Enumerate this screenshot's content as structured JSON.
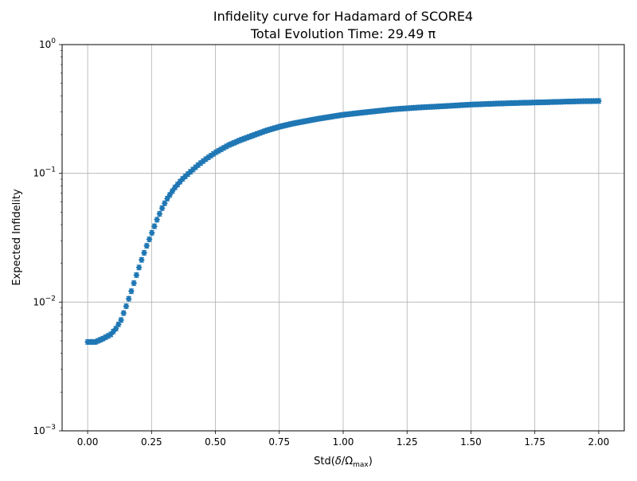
{
  "chart_data": {
    "type": "scatter",
    "title": "Infidelity curve for Hadamard of SCORE4",
    "subtitle": "Total Evolution Time: 29.49 π",
    "xlabel": "Std(δ/Ω_max)",
    "xlabel_parts": {
      "main": "Std(",
      "delta": "δ",
      "slash": "/Ω",
      "sub": "max",
      "close": ")"
    },
    "ylabel": "Expected Infidelity",
    "yscale": "log",
    "xlim": [
      -0.1,
      2.1
    ],
    "ylim": [
      0.001,
      1
    ],
    "xticks": [
      0.0,
      0.25,
      0.5,
      0.75,
      1.0,
      1.25,
      1.5,
      1.75,
      2.0
    ],
    "xtick_labels": [
      "0.00",
      "0.25",
      "0.50",
      "0.75",
      "1.00",
      "1.25",
      "1.50",
      "1.75",
      "2.00"
    ],
    "yticks": [
      0.001,
      0.01,
      0.1,
      1
    ],
    "ytick_labels": [
      {
        "base": "10",
        "exp": "−3"
      },
      {
        "base": "10",
        "exp": "−2"
      },
      {
        "base": "10",
        "exp": "−1"
      },
      {
        "base": "10",
        "exp": "0"
      }
    ],
    "grid": true,
    "series": [
      {
        "color": "#1f77b4",
        "marker": "diamond-with-errorbars",
        "x_start": 0.0,
        "x_end": 2.0,
        "count": 200,
        "anchors": {
          "x": [
            0.0,
            0.03,
            0.06,
            0.09,
            0.11,
            0.13,
            0.15,
            0.17,
            0.19,
            0.21,
            0.23,
            0.25,
            0.27,
            0.29,
            0.31,
            0.34,
            0.37,
            0.4,
            0.43,
            0.46,
            0.5,
            0.55,
            0.6,
            0.65,
            0.7,
            0.75,
            0.8,
            0.9,
            1.0,
            1.1,
            1.2,
            1.3,
            1.4,
            1.5,
            1.6,
            1.7,
            1.8,
            1.9,
            2.0
          ],
          "y": [
            0.0049,
            0.0049,
            0.0052,
            0.0056,
            0.0062,
            0.0072,
            0.0092,
            0.012,
            0.016,
            0.021,
            0.027,
            0.034,
            0.043,
            0.053,
            0.063,
            0.077,
            0.09,
            0.102,
            0.115,
            0.128,
            0.145,
            0.165,
            0.182,
            0.198,
            0.215,
            0.23,
            0.243,
            0.265,
            0.285,
            0.3,
            0.315,
            0.325,
            0.333,
            0.342,
            0.348,
            0.353,
            0.357,
            0.362,
            0.365
          ]
        }
      }
    ]
  }
}
